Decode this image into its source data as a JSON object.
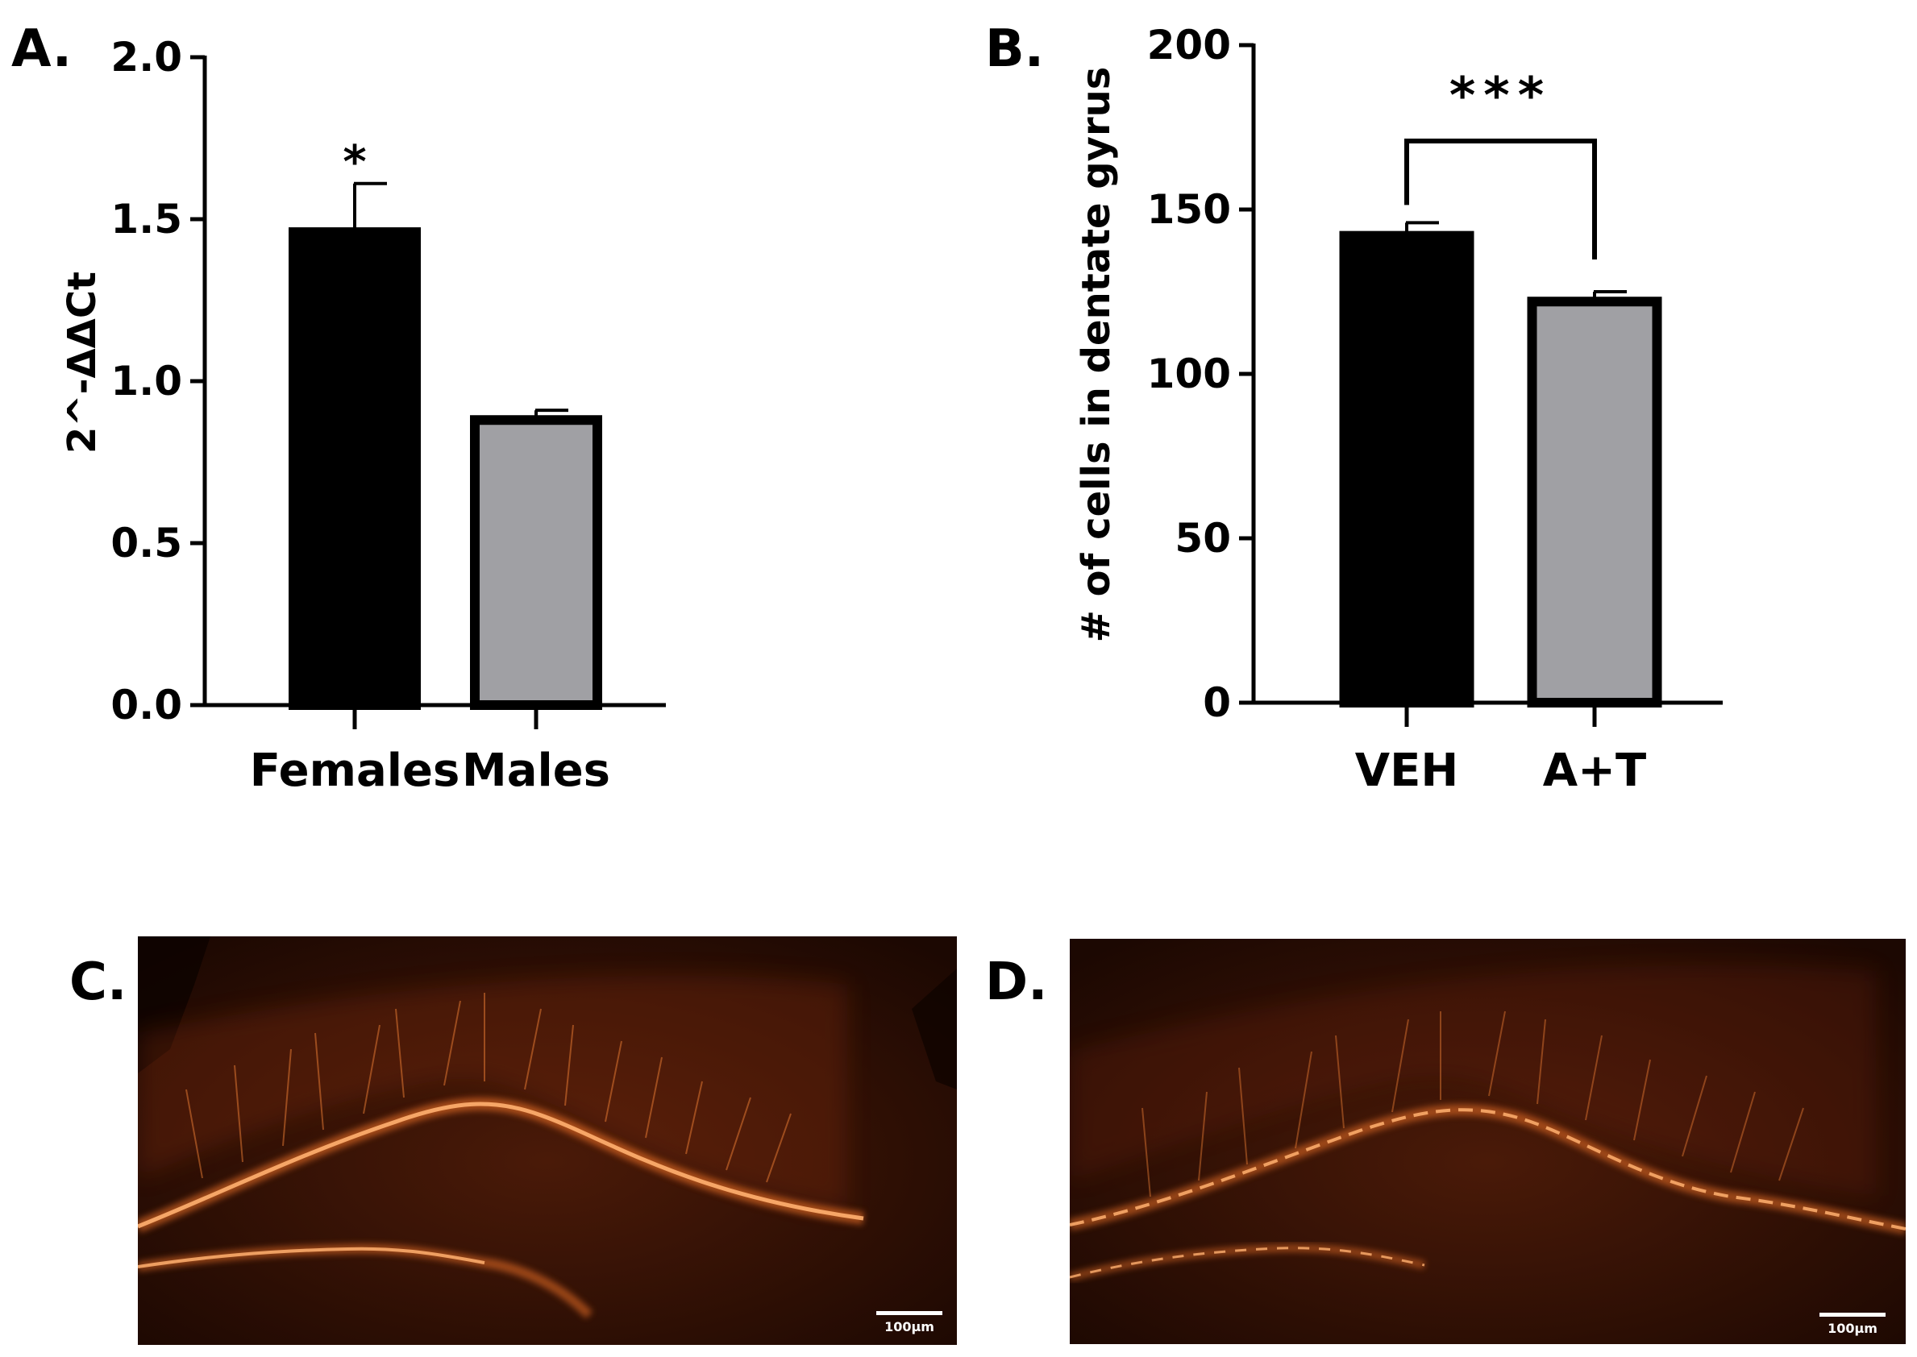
{
  "chart_data": [
    {
      "panel": "A.",
      "type": "bar",
      "categories": [
        "Females",
        "Males"
      ],
      "values": [
        1.46,
        0.88
      ],
      "errors": [
        0.15,
        0.03
      ],
      "bar_colors": [
        "#000000",
        "#a0a0a4"
      ],
      "annotations": [
        {
          "category": "Females",
          "text": "*"
        }
      ],
      "ylabel": "2^-ΔΔCt",
      "xlabel": "",
      "ylim": [
        0,
        2.0
      ],
      "yticks": [
        0.0,
        0.5,
        1.0,
        1.5,
        2.0
      ],
      "ytick_labels": [
        "0.0",
        "0.5",
        "1.0",
        "1.5",
        "2.0"
      ]
    },
    {
      "panel": "B.",
      "type": "bar",
      "categories": [
        "VEH",
        "A+T"
      ],
      "values": [
        142,
        122
      ],
      "errors": [
        4,
        3
      ],
      "bar_colors": [
        "#000000",
        "#a0a0a4"
      ],
      "significance": {
        "between": [
          "VEH",
          "A+T"
        ],
        "text": "***"
      },
      "ylabel": "# of cells in dentate gyrus",
      "xlabel": "",
      "ylim": [
        0,
        200
      ],
      "yticks": [
        0,
        50,
        100,
        150,
        200
      ],
      "ytick_labels": [
        "0",
        "50",
        "100",
        "150",
        "200"
      ]
    }
  ],
  "images": [
    {
      "panel": "C.",
      "scale_bar": "100µm"
    },
    {
      "panel": "D.",
      "scale_bar": "100µm"
    }
  ],
  "colors": {
    "accent_fluor": "#ff7a2a",
    "tissue_dark": "#1a0800",
    "tissue_mid": "#3a1406"
  }
}
